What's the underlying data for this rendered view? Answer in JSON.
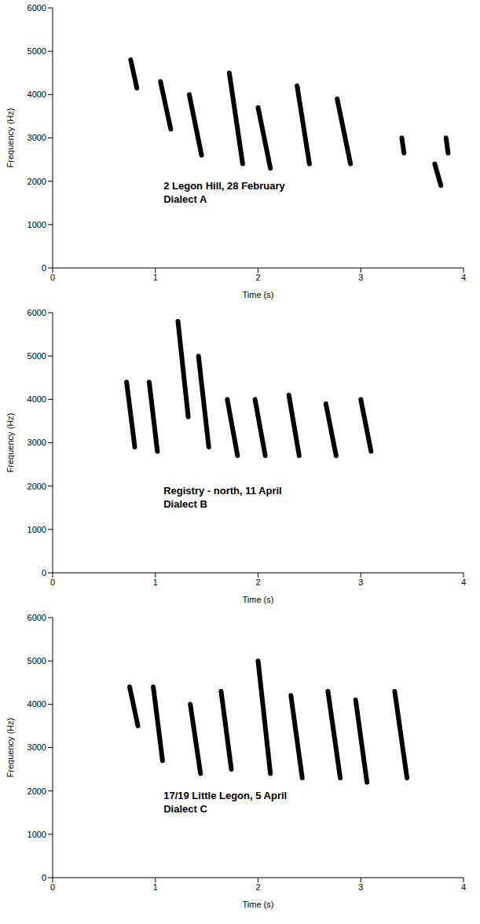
{
  "chart_data": [
    {
      "type": "line",
      "annotation": [
        "2 Legon Hill, 28 February",
        "Dialect A"
      ],
      "x_label": "Time (s)",
      "y_label": "Frequency (Hz)",
      "xlim": [
        0,
        4
      ],
      "xticks": [
        0,
        1,
        2,
        3,
        4
      ],
      "ylim": [
        0,
        6000
      ],
      "yticks": [
        0,
        1000,
        2000,
        3000,
        4000,
        5000,
        6000
      ],
      "color": "#000000",
      "segments": [
        {
          "x": [
            0.76,
            0.82
          ],
          "values": [
            4800,
            4150
          ]
        },
        {
          "x": [
            1.05,
            1.15
          ],
          "values": [
            4300,
            3200
          ]
        },
        {
          "x": [
            1.33,
            1.45
          ],
          "values": [
            4000,
            2600
          ]
        },
        {
          "x": [
            1.72,
            1.85
          ],
          "values": [
            4500,
            2400
          ]
        },
        {
          "x": [
            2.0,
            2.12
          ],
          "values": [
            3700,
            2300
          ]
        },
        {
          "x": [
            2.38,
            2.5
          ],
          "values": [
            4200,
            2400
          ]
        },
        {
          "x": [
            2.77,
            2.9
          ],
          "values": [
            3900,
            2400
          ]
        },
        {
          "x": [
            3.4,
            3.42
          ],
          "values": [
            3000,
            2650
          ]
        },
        {
          "x": [
            3.72,
            3.78
          ],
          "values": [
            2400,
            1900
          ]
        },
        {
          "x": [
            3.83,
            3.85
          ],
          "values": [
            3000,
            2650
          ]
        }
      ]
    },
    {
      "type": "line",
      "annotation": [
        "Registry -  north, 11 April",
        "Dialect B"
      ],
      "x_label": "Time (s)",
      "y_label": "Frequency (Hz)",
      "xlim": [
        0,
        4
      ],
      "xticks": [
        0,
        1,
        2,
        3,
        4
      ],
      "ylim": [
        0,
        6000
      ],
      "yticks": [
        0,
        1000,
        2000,
        3000,
        4000,
        5000,
        6000
      ],
      "color": "#000000",
      "segments": [
        {
          "x": [
            0.72,
            0.8
          ],
          "values": [
            4400,
            2900
          ]
        },
        {
          "x": [
            0.94,
            1.02
          ],
          "values": [
            4400,
            2800
          ]
        },
        {
          "x": [
            1.22,
            1.32
          ],
          "values": [
            5800,
            3600
          ]
        },
        {
          "x": [
            1.42,
            1.52
          ],
          "values": [
            5000,
            2900
          ]
        },
        {
          "x": [
            1.7,
            1.8
          ],
          "values": [
            4000,
            2700
          ]
        },
        {
          "x": [
            1.97,
            2.07
          ],
          "values": [
            4000,
            2700
          ]
        },
        {
          "x": [
            2.3,
            2.4
          ],
          "values": [
            4100,
            2700
          ]
        },
        {
          "x": [
            2.66,
            2.76
          ],
          "values": [
            3900,
            2700
          ]
        },
        {
          "x": [
            3.0,
            3.1
          ],
          "values": [
            4000,
            2800
          ]
        }
      ]
    },
    {
      "type": "line",
      "annotation": [
        "17/19 Little Legon, 5 April",
        "Dialect C"
      ],
      "x_label": "Time (s)",
      "y_label": "Frequency (Hz)",
      "xlim": [
        0,
        4
      ],
      "xticks": [
        0,
        1,
        2,
        3,
        4
      ],
      "ylim": [
        0,
        6000
      ],
      "yticks": [
        0,
        1000,
        2000,
        3000,
        4000,
        5000,
        6000
      ],
      "color": "#000000",
      "segments": [
        {
          "x": [
            0.75,
            0.83
          ],
          "values": [
            4400,
            3500
          ]
        },
        {
          "x": [
            0.98,
            1.07
          ],
          "values": [
            4400,
            2700
          ]
        },
        {
          "x": [
            1.34,
            1.44
          ],
          "values": [
            4000,
            2400
          ]
        },
        {
          "x": [
            1.64,
            1.74
          ],
          "values": [
            4300,
            2500
          ]
        },
        {
          "x": [
            2.0,
            2.12
          ],
          "values": [
            5000,
            2400
          ]
        },
        {
          "x": [
            2.32,
            2.43
          ],
          "values": [
            4200,
            2300
          ]
        },
        {
          "x": [
            2.68,
            2.8
          ],
          "values": [
            4300,
            2300
          ]
        },
        {
          "x": [
            2.95,
            3.06
          ],
          "values": [
            4100,
            2200
          ]
        },
        {
          "x": [
            3.33,
            3.45
          ],
          "values": [
            4300,
            2300
          ]
        }
      ]
    }
  ]
}
